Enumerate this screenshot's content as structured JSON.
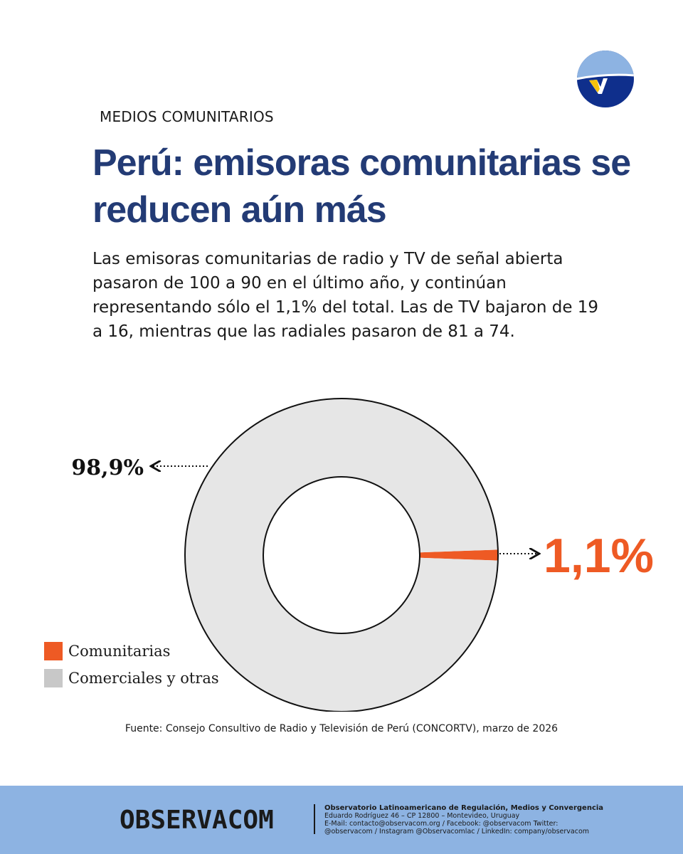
{
  "header": {
    "kicker": "MEDIOS COMUNITARIOS",
    "title": "Perú: emisoras comunitarias se reducen aún más",
    "lead": "Las emisoras comunitarias de radio y TV de señal abierta pasaron de 100 a 90 en el último año, y continúan representando sólo el 1,1% del total. Las de TV bajaron de 19 a 16, mientras que las radiales pasaron de 81 a 74."
  },
  "chart_data": {
    "type": "pie",
    "style": "donut",
    "title": "",
    "categories": [
      "Comunitarias",
      "Comerciales y otras"
    ],
    "values": [
      1.1,
      98.9
    ],
    "data_labels": [
      "1,1%",
      "98,9%"
    ],
    "colors": [
      "#ee5a24",
      "#e6e6e6"
    ],
    "legend": {
      "position": "bottom-left",
      "entries": [
        "Comunitarias",
        "Comerciales y otras"
      ]
    }
  },
  "source": "Fuente: Consejo Consultivo de Radio y Televisión de Perú (CONCORTV), marzo de 2026",
  "footer": {
    "brand": "OBSERVACOM",
    "org_name": "Observatorio Latinoamericano de Regulación, Medios y Convergencia",
    "address": "Eduardo Rodríguez 46 – CP 12800 – Montevideo, Uruguay",
    "contact_line1": "E-Mail: contacto@observacom.org / Facebook: @observacom Twitter:",
    "contact_line2": "@observacom / Instagram @Observacomlac / LinkedIn: company/observacom"
  },
  "colors": {
    "title": "#233b75",
    "accent": "#ee5a24",
    "footer_bg": "#8db3e2",
    "logo_navy": "#0f2f8c",
    "logo_light": "#8db3e2",
    "logo_yellow": "#f4c20d"
  },
  "icons": {
    "logo": "observacom-logo-icon"
  }
}
